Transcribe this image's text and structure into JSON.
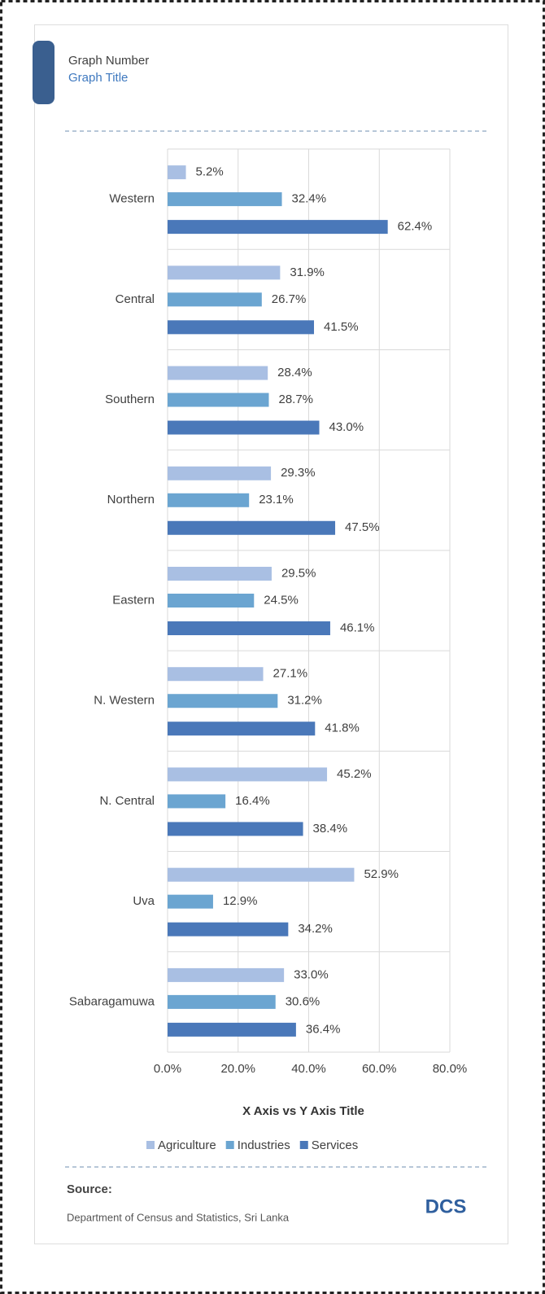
{
  "header": {
    "graph_number": "Graph Number",
    "graph_title": "Graph Title"
  },
  "chart_data": {
    "type": "bar",
    "orientation": "horizontal",
    "categories": [
      "Western",
      "Central",
      "Southern",
      "Northern",
      "Eastern",
      "N. Western",
      "N. Central",
      "Uva",
      "Sabaragamuwa"
    ],
    "series": [
      {
        "name": "Agriculture",
        "color": "#a9bfe3",
        "values": [
          5.2,
          31.9,
          28.4,
          29.3,
          29.5,
          27.1,
          45.2,
          52.9,
          33.0
        ],
        "value_labels": [
          "5.2%",
          "31.9%",
          "28.4%",
          "29.3%",
          "29.5%",
          "27.1%",
          "45.2%",
          "52.9%",
          "33.0%"
        ]
      },
      {
        "name": "Industries",
        "color": "#6ba5d1",
        "values": [
          32.4,
          26.7,
          28.7,
          23.1,
          24.5,
          31.2,
          16.4,
          12.9,
          30.6
        ],
        "value_labels": [
          "32.4%",
          "26.7%",
          "28.7%",
          "23.1%",
          "24.5%",
          "31.2%",
          "16.4%",
          "12.9%",
          "30.6%"
        ]
      },
      {
        "name": "Services",
        "color": "#4a78b9",
        "values": [
          62.4,
          41.5,
          43.0,
          47.5,
          46.1,
          41.8,
          38.4,
          34.2,
          36.4
        ],
        "value_labels": [
          "62.4%",
          "41.5%",
          "43.0%",
          "47.5%",
          "46.1%",
          "41.8%",
          "38.4%",
          "34.2%",
          "36.4%"
        ]
      }
    ],
    "xlim": [
      0,
      80
    ],
    "xticks": [
      {
        "value": 0,
        "label": "0.0%"
      },
      {
        "value": 20,
        "label": "20.0%"
      },
      {
        "value": 40,
        "label": "40.0%"
      },
      {
        "value": 60,
        "label": "60.0%"
      },
      {
        "value": 80,
        "label": "80.0%"
      }
    ],
    "xlabel": "X Axis vs Y Axis Title",
    "grid": true,
    "legend": "bottom"
  },
  "source": {
    "label": "Source:",
    "text": "Department of Census and Statistics, Sri Lanka"
  },
  "logo": "DCS"
}
